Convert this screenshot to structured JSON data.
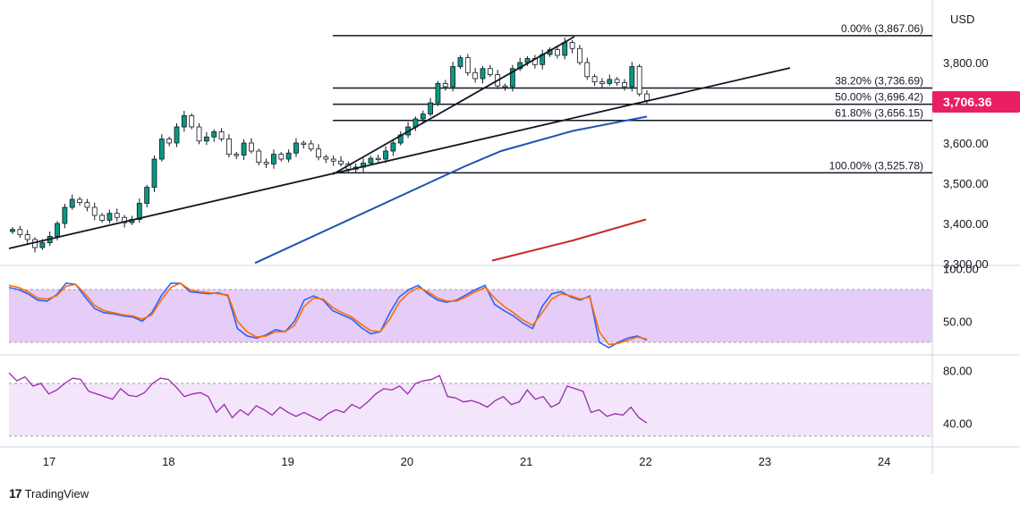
{
  "currency": "USD",
  "brand": {
    "logo": "17",
    "name": "TradingView"
  },
  "colors": {
    "up": "#089981",
    "down": "#f23645",
    "candle_up": "#26a69a",
    "ma_fast": "#1e53b4",
    "ma_slow": "#c62828",
    "trend": "#131722",
    "k_line": "#2962ff",
    "d_line": "#ff6d00",
    "rsi_line": "#9c27b0",
    "stoch_band": "#e1c6f7",
    "rsi_band": "#f3e5fb",
    "price_tag": "#e91e63"
  },
  "chart_data": [
    {
      "type": "candlestick",
      "title": "",
      "price_axis": {
        "ticks": [
          "3,800.00",
          "3,700.00",
          "3,600.00",
          "3,500.00",
          "3,400.00",
          "3,300.00"
        ],
        "range": [
          3300,
          3900
        ]
      },
      "time_axis": {
        "ticks": [
          "17",
          "18",
          "19",
          "20",
          "21",
          "22",
          "23",
          "24"
        ]
      },
      "last_price": "3,706.36",
      "fib_levels": [
        {
          "label": "0.00% (3,867.06)",
          "value": 3867.06
        },
        {
          "label": "38.20% (3,736.69)",
          "value": 3736.69
        },
        {
          "label": "50.00% (3,696.42)",
          "value": 3696.42
        },
        {
          "label": "61.80% (3,656.15)",
          "value": 3656.15
        },
        {
          "label": "100.00% (3,525.78)",
          "value": 3525.78
        }
      ],
      "close_series": [
        3385,
        3372,
        3360,
        3340,
        3352,
        3368,
        3400,
        3440,
        3460,
        3452,
        3440,
        3420,
        3408,
        3425,
        3415,
        3402,
        3410,
        3450,
        3490,
        3560,
        3610,
        3600,
        3640,
        3668,
        3640,
        3605,
        3615,
        3628,
        3610,
        3572,
        3570,
        3600,
        3580,
        3552,
        3548,
        3572,
        3560,
        3575,
        3600,
        3598,
        3585,
        3565,
        3560,
        3555,
        3548,
        3535,
        3540,
        3550,
        3562,
        3560,
        3580,
        3600,
        3620,
        3640,
        3660,
        3672,
        3700,
        3748,
        3740,
        3790,
        3812,
        3775,
        3760,
        3785,
        3770,
        3742,
        3740,
        3785,
        3800,
        3810,
        3795,
        3820,
        3832,
        3818,
        3850,
        3835,
        3800,
        3765,
        3752,
        3748,
        3758,
        3750,
        3740,
        3790,
        3722,
        3706
      ],
      "ma_fast": [
        [
          3298,
          3305
        ],
        [
          3520,
          3565
        ],
        [
          3560,
          3600
        ],
        [
          3620,
          3640
        ],
        [
          3650,
          3662
        ],
        [
          3664,
          3667
        ]
      ],
      "ma_slow": [
        [
          3300,
          3315
        ],
        [
          3350,
          3365
        ],
        [
          3400,
          3420
        ]
      ]
    },
    {
      "type": "line",
      "title": "",
      "y_axis": {
        "ticks": [
          "100.00",
          "50.00"
        ],
        "range": [
          20,
          100
        ],
        "band": [
          30,
          80
        ]
      },
      "series": [
        {
          "values": [
            82,
            80,
            76,
            70,
            69,
            75,
            86,
            85,
            73,
            62,
            58,
            57,
            55,
            54,
            50,
            58,
            74,
            86,
            86,
            78,
            77,
            76,
            77,
            74,
            43,
            36,
            34,
            37,
            42,
            40,
            50,
            70,
            74,
            70,
            60,
            56,
            52,
            44,
            38,
            40,
            58,
            73,
            80,
            84,
            76,
            70,
            68,
            70,
            75,
            80,
            84,
            66,
            60,
            55,
            48,
            43,
            64,
            76,
            78,
            73,
            70,
            74,
            30,
            25,
            30,
            34,
            36,
            32
          ]
        },
        {
          "values": [
            84,
            82,
            78,
            72,
            71,
            74,
            83,
            85,
            76,
            65,
            60,
            58,
            56,
            55,
            52,
            56,
            70,
            82,
            86,
            80,
            78,
            77,
            76,
            75,
            50,
            40,
            35,
            36,
            40,
            40,
            46,
            64,
            72,
            71,
            63,
            58,
            54,
            47,
            41,
            40,
            52,
            68,
            77,
            82,
            78,
            72,
            69,
            69,
            73,
            78,
            82,
            72,
            64,
            58,
            51,
            46,
            58,
            71,
            76,
            74,
            71,
            73,
            40,
            28,
            29,
            32,
            35,
            33
          ]
        }
      ]
    },
    {
      "type": "line",
      "title": "",
      "y_axis": {
        "ticks": [
          "80.00",
          "40.00"
        ],
        "range": [
          30,
          90
        ],
        "band": [
          30,
          70
        ]
      },
      "series": [
        {
          "values": [
            78,
            72,
            75,
            68,
            70,
            62,
            65,
            70,
            74,
            73,
            64,
            62,
            60,
            58,
            66,
            61,
            60,
            63,
            70,
            74,
            73,
            67,
            60,
            62,
            63,
            60,
            48,
            54,
            44,
            50,
            46,
            53,
            50,
            46,
            52,
            48,
            45,
            48,
            45,
            42,
            47,
            50,
            48,
            54,
            51,
            56,
            62,
            66,
            65,
            68,
            62,
            70,
            72,
            73,
            76,
            60,
            59,
            56,
            57,
            55,
            52,
            57,
            60,
            54,
            56,
            65,
            58,
            60,
            52,
            55,
            68,
            66,
            64,
            48,
            50,
            45,
            47,
            46,
            52,
            44,
            40
          ]
        }
      ]
    }
  ]
}
